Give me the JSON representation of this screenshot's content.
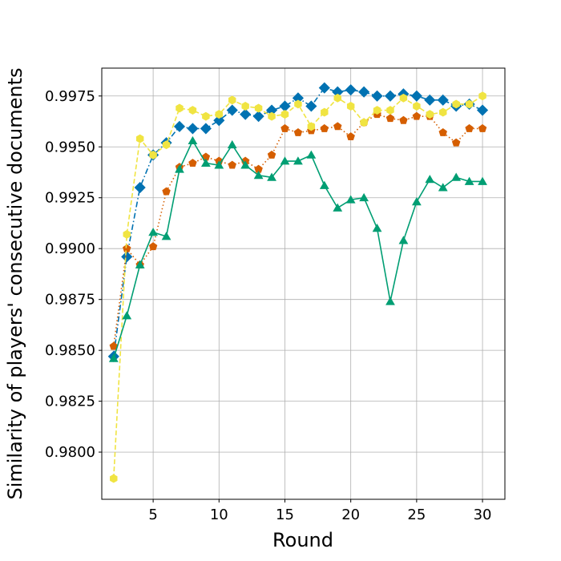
{
  "chart_data": {
    "type": "line",
    "title": "",
    "xlabel": "Round",
    "ylabel": "Similarity of players' consecutive documents",
    "xlim": [
      1.1,
      31.7
    ],
    "ylim": [
      0.97768,
      0.99887
    ],
    "xticks": [
      5,
      10,
      15,
      20,
      25,
      30
    ],
    "yticks": [
      0.98,
      0.9825,
      0.985,
      0.9875,
      0.99,
      0.9925,
      0.995,
      0.9975
    ],
    "xtick_labels": [
      "5",
      "10",
      "15",
      "20",
      "25",
      "30"
    ],
    "ytick_labels": [
      "0.9800",
      "0.9825",
      "0.9850",
      "0.9875",
      "0.9900",
      "0.9925",
      "0.9950",
      "0.9975"
    ],
    "grid": true,
    "x": [
      2,
      3,
      4,
      5,
      6,
      7,
      8,
      9,
      10,
      11,
      12,
      13,
      14,
      15,
      16,
      17,
      18,
      19,
      20,
      21,
      22,
      23,
      24,
      25,
      26,
      27,
      28,
      29,
      30
    ],
    "series": [
      {
        "color": "#0072b2",
        "linestyle": "dashdot",
        "marker": "diamond",
        "values": [
          0.9847,
          0.9896,
          0.993,
          0.9946,
          0.9952,
          0.996,
          0.9959,
          0.9959,
          0.9963,
          0.9968,
          0.9966,
          0.9965,
          0.9968,
          0.997,
          0.9974,
          0.997,
          0.9979,
          0.9977,
          0.9978,
          0.9977,
          0.9975,
          0.9975,
          0.9976,
          0.9975,
          0.9973,
          0.9973,
          0.997,
          0.9971,
          0.9968
        ]
      },
      {
        "color": "#d55e00",
        "linestyle": "dotted",
        "marker": "pentagon",
        "values": [
          0.9852,
          0.99,
          0.9892,
          0.9901,
          0.9928,
          0.994,
          0.9942,
          0.9945,
          0.9943,
          0.9941,
          0.9943,
          0.9939,
          0.9946,
          0.9959,
          0.9957,
          0.9958,
          0.9959,
          0.996,
          0.9955,
          0.9962,
          0.9966,
          0.9964,
          0.9963,
          0.9965,
          0.9965,
          0.9957,
          0.9952,
          0.9959,
          0.9959
        ]
      },
      {
        "color": "#f0e442",
        "linestyle": "dashed",
        "marker": "hexagon",
        "values": [
          0.9787,
          0.9907,
          0.9954,
          0.9946,
          0.9951,
          0.9969,
          0.9968,
          0.9965,
          0.9966,
          0.9973,
          0.997,
          0.9969,
          0.9965,
          0.9966,
          0.9971,
          0.996,
          0.9967,
          0.9974,
          0.997,
          0.9962,
          0.9968,
          0.9968,
          0.9974,
          0.997,
          0.9966,
          0.9967,
          0.9971,
          0.9971,
          0.9975
        ]
      },
      {
        "color": "#009e73",
        "linestyle": "solid",
        "marker": "triangle",
        "values": [
          0.9846,
          0.9867,
          0.9892,
          0.9908,
          0.9906,
          0.9939,
          0.9953,
          0.9942,
          0.9941,
          0.9951,
          0.9941,
          0.9936,
          0.9935,
          0.9943,
          0.9943,
          0.9946,
          0.9931,
          0.992,
          0.9924,
          0.9925,
          0.991,
          0.9874,
          0.9904,
          0.9923,
          0.9934,
          0.993,
          0.9935,
          0.9933,
          0.9933
        ]
      }
    ]
  }
}
